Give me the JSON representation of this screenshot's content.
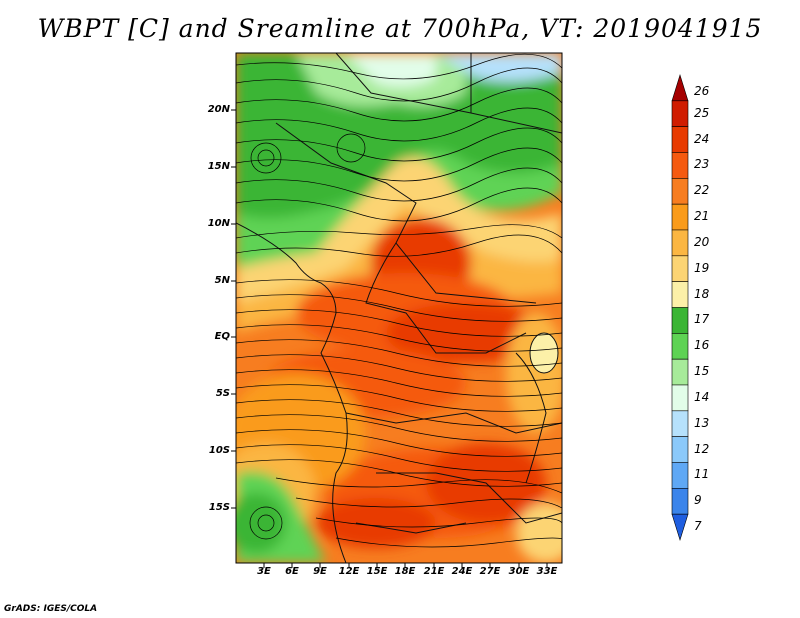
{
  "title": "WBPT [C] and Sreamline at 700hPa, VT: 2019041915",
  "lat_ticks": [
    "20N",
    "15N",
    "10N",
    "5N",
    "EQ",
    "5S",
    "10S",
    "15S"
  ],
  "lat_values": [
    20,
    15,
    10,
    5,
    0,
    -5,
    -10,
    -15
  ],
  "lon_ticks": [
    "3E",
    "6E",
    "9E",
    "12E",
    "15E",
    "18E",
    "21E",
    "24E",
    "27E",
    "30E",
    "33E"
  ],
  "lon_values": [
    3,
    6,
    9,
    12,
    15,
    18,
    21,
    24,
    27,
    30,
    33
  ],
  "colorbar": {
    "labels": [
      "26",
      "25",
      "24",
      "23",
      "22",
      "21",
      "20",
      "19",
      "18",
      "17",
      "16",
      "15",
      "14",
      "13",
      "12",
      "11",
      "9",
      "7"
    ],
    "colors": [
      "#a50000",
      "#d01c00",
      "#e83a00",
      "#f55a10",
      "#f77d20",
      "#fa9b1a",
      "#fbb642",
      "#fcd473",
      "#fcf0a8",
      "#3ab534",
      "#5ed354",
      "#a7eb9a",
      "#e2fde9",
      "#b6e1fc",
      "#8bc9fa",
      "#5fa8f5",
      "#3a84eb",
      "#1f5ee0"
    ]
  },
  "credit": "GrADS: IGES/COLA"
}
